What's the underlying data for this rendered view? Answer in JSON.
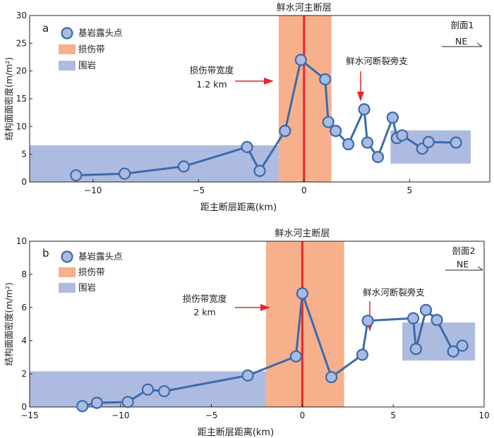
{
  "chart_data": [
    {
      "type": "line",
      "panel_letter": "a",
      "title": "鲜水河主断层",
      "profile_label": "剖面1",
      "direction_label": "NE",
      "xlabel": "距主断层距离(km)",
      "ylabel": "结构面面密度(m/m²)",
      "xlim": [
        -13,
        8.8
      ],
      "ylim": [
        0,
        30
      ],
      "xticks": [
        -10,
        -5,
        0,
        5
      ],
      "xtick_labels": [
        "−10",
        "−5",
        "0",
        "5"
      ],
      "yticks": [
        0,
        5,
        10,
        15,
        20,
        25,
        30
      ],
      "legend": {
        "position": "top-left",
        "entries": [
          "基岩露头点",
          "损伤带",
          "围岩"
        ]
      },
      "fault_x": 0,
      "damage_zone_x": [
        -1.2,
        1.3
      ],
      "host_rock_boxes": [
        {
          "x": [
            -13,
            -1.2
          ],
          "y": [
            0,
            6.6
          ]
        },
        {
          "x": [
            4.1,
            7.9
          ],
          "y": [
            3.3,
            9.3
          ]
        }
      ],
      "annotations": [
        {
          "text": "损伤带宽度",
          "text2": "1.2 km"
        },
        {
          "text": "鲜水河断裂旁支"
        }
      ],
      "series": [
        {
          "name": "基岩露头点",
          "x": [
            -10.8,
            -8.5,
            -5.7,
            -2.7,
            -2.1,
            -0.9,
            -0.15,
            1.0,
            1.15,
            1.5,
            2.1,
            2.85,
            3.0,
            3.5,
            4.2,
            4.4,
            4.65,
            5.6,
            5.9,
            7.2
          ],
          "y": [
            1.2,
            1.5,
            2.8,
            6.3,
            2.0,
            9.2,
            22.0,
            18.5,
            10.8,
            9.2,
            6.8,
            13.1,
            7.1,
            4.5,
            11.6,
            7.9,
            8.4,
            6.0,
            7.2,
            7.1
          ]
        }
      ]
    },
    {
      "type": "line",
      "panel_letter": "b",
      "title": "鲜水河主断层",
      "profile_label": "剖面2",
      "direction_label": "NE",
      "xlabel": "距主断层距离(km)",
      "ylabel": "结构面面密度(m/m²)",
      "xlim": [
        -15,
        10
      ],
      "ylim": [
        0,
        10
      ],
      "xticks": [
        -15,
        -10,
        -5,
        0,
        5,
        10
      ],
      "xtick_labels": [
        "−15",
        "−10",
        "−5",
        "0",
        "5",
        "10"
      ],
      "yticks": [
        0,
        2,
        4,
        6,
        8,
        10
      ],
      "legend": {
        "position": "top-left",
        "entries": [
          "基岩露头点",
          "损伤带",
          "围岩"
        ]
      },
      "fault_x": 0,
      "damage_zone_x": [
        -2.0,
        2.3
      ],
      "host_rock_boxes": [
        {
          "x": [
            -15,
            -2.0
          ],
          "y": [
            0,
            2.15
          ]
        },
        {
          "x": [
            5.5,
            9.5
          ],
          "y": [
            2.8,
            5.1
          ]
        }
      ],
      "annotations": [
        {
          "text": "损伤带宽度",
          "text2": "2 km"
        },
        {
          "text": "鲜水河断裂旁支"
        }
      ],
      "series": [
        {
          "name": "基岩露头点",
          "x": [
            -12.1,
            -11.3,
            -9.6,
            -8.5,
            -7.6,
            -3.0,
            -0.35,
            0,
            1.6,
            3.3,
            3.6,
            6.1,
            6.25,
            6.8,
            7.4,
            8.3,
            8.8
          ],
          "y": [
            0.05,
            0.25,
            0.3,
            1.05,
            0.95,
            1.9,
            3.05,
            6.85,
            1.8,
            3.15,
            5.2,
            5.35,
            3.5,
            5.85,
            5.25,
            3.35,
            3.7
          ]
        }
      ]
    }
  ]
}
